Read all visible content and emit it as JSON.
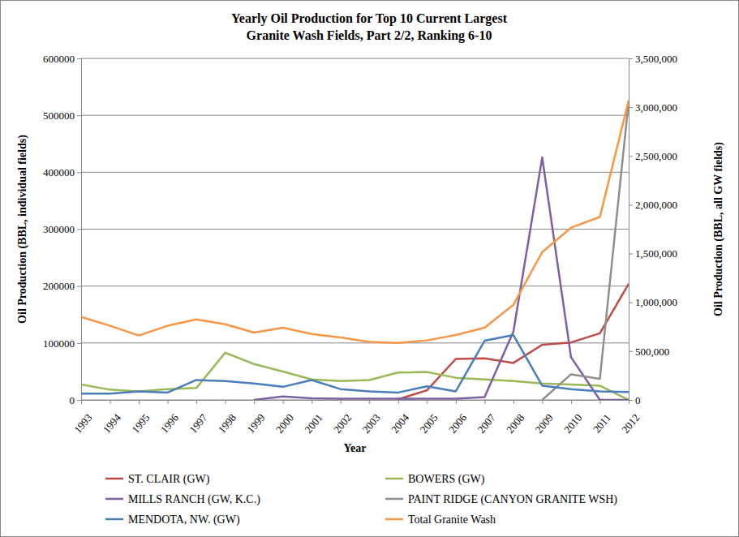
{
  "chart_data": {
    "type": "line",
    "title": [
      "Yearly Oil Production for Top 10 Current Largest",
      "Granite Wash Fields, Part 2/2, Ranking 6-10"
    ],
    "x_label": "Year",
    "y_label": "Oil Production (BBL, individual fields)",
    "y2_label": "Oil Production (BBL, all GW fields)",
    "categories": [
      "1993",
      "1994",
      "1995",
      "1996",
      "1997",
      "1998",
      "1999",
      "2000",
      "2001",
      "2002",
      "2003",
      "2004",
      "2005",
      "2006",
      "2007",
      "2008",
      "2009",
      "2010",
      "2011",
      "2012"
    ],
    "ylim": [
      0,
      600000
    ],
    "yticks": [
      0,
      100000,
      200000,
      300000,
      400000,
      500000,
      600000
    ],
    "y2lim": [
      0,
      3500000
    ],
    "y2ticks": [
      0,
      {
        "value": 500000,
        "label": "500,000"
      },
      {
        "value": 1000000,
        "label": "1,000,000"
      },
      {
        "value": 1500000,
        "label": "1,500,000"
      },
      {
        "value": 2000000,
        "label": "2,000,000"
      },
      {
        "value": 2500000,
        "label": "2,500,000"
      },
      {
        "value": 3000000,
        "label": "3,000,000"
      },
      {
        "value": 3500000,
        "label": "3,500,000"
      }
    ],
    "grid": true,
    "legend": "bottom",
    "series": [
      {
        "name": "ST. CLAIR (GW)",
        "color": "#be4b48",
        "values": [
          null,
          null,
          null,
          null,
          null,
          null,
          null,
          null,
          null,
          null,
          null,
          1000,
          17000,
          72000,
          73000,
          65000,
          97000,
          101000,
          117000,
          204000
        ]
      },
      {
        "name": "BOWERS (GW)",
        "color": "#98b954",
        "values": [
          27000,
          18000,
          15000,
          19000,
          21000,
          83000,
          63000,
          50000,
          36000,
          33000,
          35000,
          48000,
          49000,
          39000,
          36000,
          33000,
          29000,
          27000,
          25000,
          0
        ]
      },
      {
        "name": "MILLS RANCH (GW, K.C.)",
        "color": "#7d60a0",
        "values": [
          null,
          null,
          null,
          null,
          null,
          null,
          0,
          6000,
          3000,
          2000,
          2000,
          2000,
          2000,
          2000,
          5000,
          120000,
          426000,
          75000,
          0,
          0
        ]
      },
      {
        "name": "PAINT RIDGE (CANYON GRANITE WSH)",
        "color": "#8f8f8f",
        "values": [
          null,
          null,
          null,
          null,
          null,
          null,
          null,
          null,
          null,
          null,
          null,
          null,
          null,
          null,
          null,
          null,
          0,
          45000,
          37000,
          525000
        ]
      },
      {
        "name": "MENDOTA, NW. (GW)",
        "color": "#4a7ebb",
        "values": [
          11000,
          11000,
          15000,
          13000,
          35000,
          33000,
          29000,
          23000,
          35000,
          19000,
          15000,
          13000,
          24000,
          15000,
          104000,
          114000,
          25000,
          19000,
          15000,
          14000
        ]
      },
      {
        "name": "Total Granite Wash",
        "color": "#f79646",
        "axis": "y2",
        "values": [
          850000,
          760000,
          660000,
          760000,
          825000,
          775000,
          690000,
          740000,
          675000,
          640000,
          595000,
          585000,
          610000,
          665000,
          740000,
          975000,
          1515000,
          1765000,
          1875000,
          3070000
        ]
      }
    ]
  }
}
